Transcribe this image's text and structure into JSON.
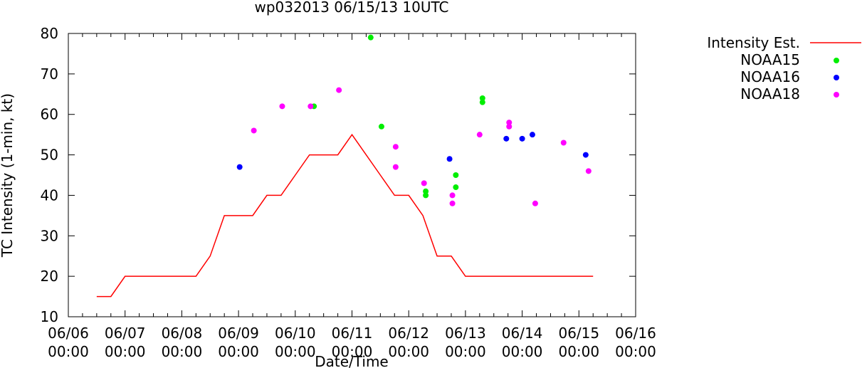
{
  "chart_data": {
    "type": "line",
    "title": "wp032013 06/15/13 10UTC",
    "xlabel": "Date/Time",
    "ylabel": "TC Intensity (1-min, kt)",
    "ylim": [
      10,
      80
    ],
    "yticks": [
      10,
      20,
      30,
      40,
      50,
      60,
      70,
      80
    ],
    "xlim": [
      0,
      10
    ],
    "xticks": [
      {
        "x": 0,
        "date": "06/06",
        "time": "00:00"
      },
      {
        "x": 1,
        "date": "06/07",
        "time": "00:00"
      },
      {
        "x": 2,
        "date": "06/08",
        "time": "00:00"
      },
      {
        "x": 3,
        "date": "06/09",
        "time": "00:00"
      },
      {
        "x": 4,
        "date": "06/10",
        "time": "00:00"
      },
      {
        "x": 5,
        "date": "06/11",
        "time": "00:00"
      },
      {
        "x": 6,
        "date": "06/12",
        "time": "00:00"
      },
      {
        "x": 7,
        "date": "06/13",
        "time": "00:00"
      },
      {
        "x": 8,
        "date": "06/14",
        "time": "00:00"
      },
      {
        "x": 9,
        "date": "06/15",
        "time": "00:00"
      },
      {
        "x": 10,
        "date": "06/16",
        "time": "00:00"
      }
    ],
    "x_units": "days since 06/06 00:00",
    "legend_position": "right",
    "series": [
      {
        "name": "Intensity Est.",
        "kind": "line",
        "color": "#ff0000",
        "points": [
          [
            0.5,
            15
          ],
          [
            0.75,
            15
          ],
          [
            1.0,
            20
          ],
          [
            1.25,
            20
          ],
          [
            1.5,
            20
          ],
          [
            1.75,
            20
          ],
          [
            2.0,
            20
          ],
          [
            2.25,
            20
          ],
          [
            2.5,
            25
          ],
          [
            2.75,
            35
          ],
          [
            3.0,
            35
          ],
          [
            3.25,
            35
          ],
          [
            3.5,
            40
          ],
          [
            3.75,
            40
          ],
          [
            4.0,
            45
          ],
          [
            4.25,
            50
          ],
          [
            4.5,
            50
          ],
          [
            4.75,
            50
          ],
          [
            5.0,
            55
          ],
          [
            5.25,
            50
          ],
          [
            5.5,
            45
          ],
          [
            5.75,
            40
          ],
          [
            6.0,
            40
          ],
          [
            6.25,
            35
          ],
          [
            6.5,
            25
          ],
          [
            6.75,
            25
          ],
          [
            7.0,
            20
          ],
          [
            7.25,
            20
          ],
          [
            7.5,
            20
          ],
          [
            7.75,
            20
          ],
          [
            8.0,
            20
          ],
          [
            8.25,
            20
          ],
          [
            8.5,
            20
          ],
          [
            8.75,
            20
          ],
          [
            9.0,
            20
          ],
          [
            9.25,
            20
          ]
        ]
      },
      {
        "name": "NOAA15",
        "kind": "scatter",
        "color": "#00ee00",
        "points": [
          [
            4.33,
            62
          ],
          [
            5.33,
            79
          ],
          [
            5.52,
            57
          ],
          [
            6.3,
            41
          ],
          [
            6.3,
            40
          ],
          [
            6.83,
            45
          ],
          [
            6.83,
            42
          ],
          [
            7.3,
            64
          ],
          [
            7.3,
            63
          ]
        ]
      },
      {
        "name": "NOAA16",
        "kind": "scatter",
        "color": "#0000ff",
        "points": [
          [
            3.02,
            47
          ],
          [
            6.72,
            49
          ],
          [
            7.72,
            54
          ],
          [
            8.0,
            54
          ],
          [
            8.18,
            55
          ],
          [
            9.12,
            50
          ]
        ]
      },
      {
        "name": "NOAA18",
        "kind": "scatter",
        "color": "#ff00ff",
        "points": [
          [
            3.27,
            56
          ],
          [
            3.77,
            62
          ],
          [
            4.27,
            62
          ],
          [
            4.77,
            66
          ],
          [
            5.77,
            52
          ],
          [
            5.77,
            47
          ],
          [
            6.27,
            43
          ],
          [
            6.77,
            40
          ],
          [
            6.77,
            38
          ],
          [
            7.25,
            55
          ],
          [
            7.77,
            58
          ],
          [
            7.77,
            57
          ],
          [
            8.23,
            38
          ],
          [
            8.73,
            53
          ],
          [
            9.17,
            46
          ]
        ]
      }
    ]
  }
}
